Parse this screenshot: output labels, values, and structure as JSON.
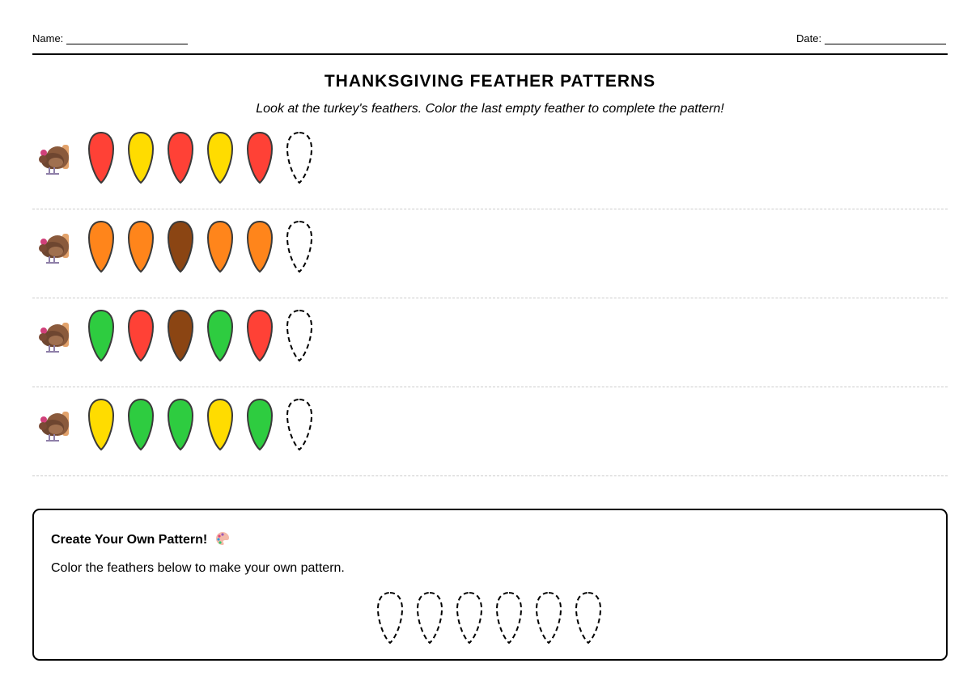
{
  "header": {
    "name_label": "Name:",
    "date_label": "Date:"
  },
  "title": "THANKSGIVING FEATHER PATTERNS",
  "instructions": "Look at the turkey's feathers. Color the last empty feather to complete the pattern!",
  "colors": {
    "red": "#ff4136",
    "yellow": "#ffdc00",
    "orange": "#ff851b",
    "brown": "#8b4513",
    "green": "#2ecc40"
  },
  "rows": [
    {
      "icon": "turkey-icon",
      "feathers": [
        "red",
        "yellow",
        "red",
        "yellow",
        "red",
        "empty"
      ]
    },
    {
      "icon": "turkey-icon",
      "feathers": [
        "orange",
        "orange",
        "brown",
        "orange",
        "orange",
        "empty"
      ]
    },
    {
      "icon": "turkey-icon",
      "feathers": [
        "green",
        "red",
        "brown",
        "green",
        "red",
        "empty"
      ]
    },
    {
      "icon": "turkey-icon",
      "feathers": [
        "yellow",
        "green",
        "green",
        "yellow",
        "green",
        "empty"
      ]
    }
  ],
  "custom": {
    "title": "Create Your Own Pattern!",
    "icon": "palette-icon",
    "text": "Color the feathers below to make your own pattern.",
    "feathers": [
      "empty",
      "empty",
      "empty",
      "empty",
      "empty",
      "empty"
    ]
  }
}
